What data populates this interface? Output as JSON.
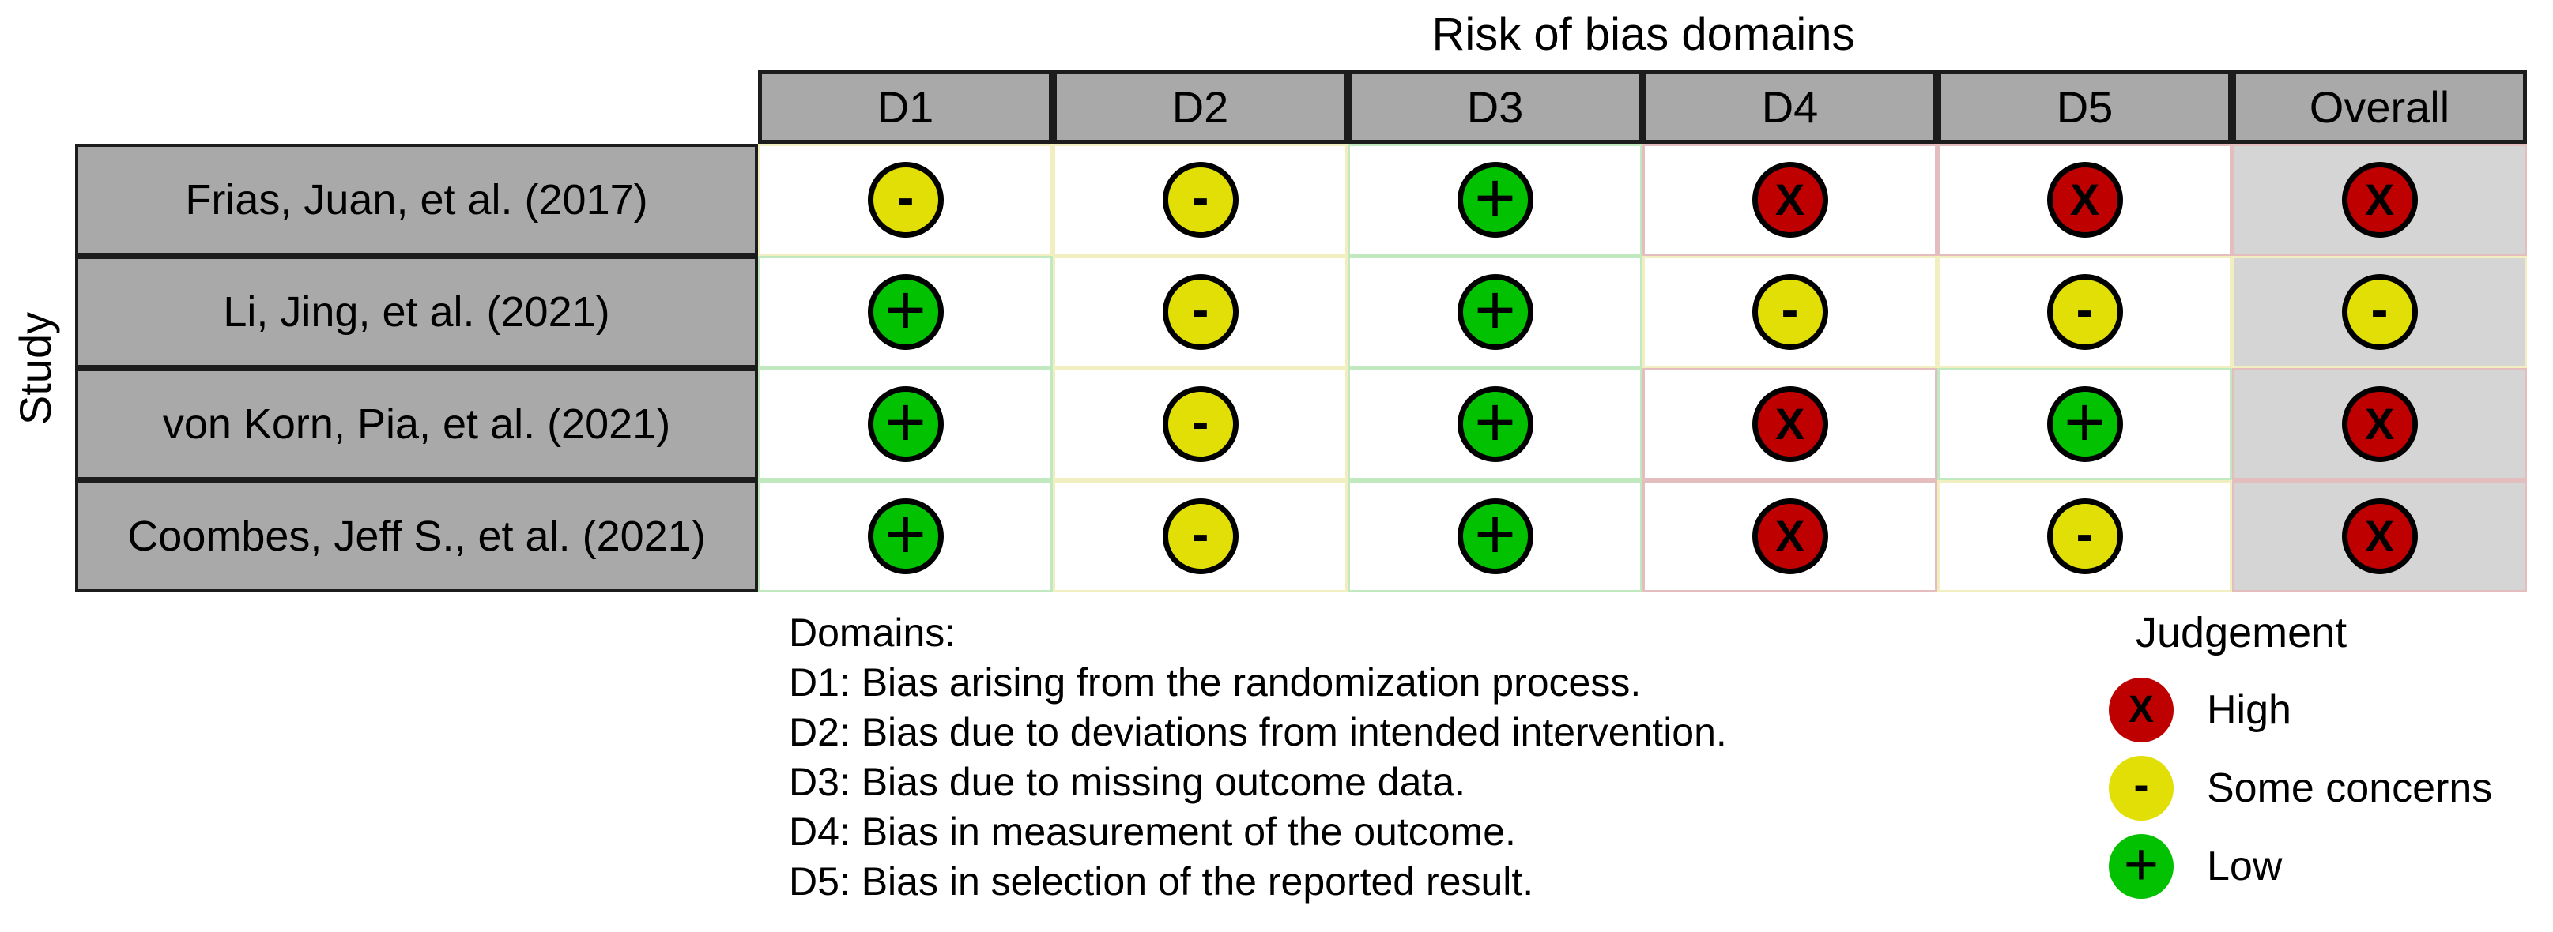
{
  "figure": {
    "title": "Risk of bias domains",
    "y_axis_label": "Study"
  },
  "table": {
    "columns": [
      "D1",
      "D2",
      "D3",
      "D4",
      "D5",
      "Overall"
    ],
    "rows": [
      {
        "study": "Frias, Juan, et al. (2017)",
        "judgements": [
          "some_concerns",
          "some_concerns",
          "low",
          "high",
          "high",
          "high"
        ]
      },
      {
        "study": "Li, Jing, et al. (2021)",
        "judgements": [
          "low",
          "some_concerns",
          "low",
          "some_concerns",
          "some_concerns",
          "some_concerns"
        ]
      },
      {
        "study": "von Korn, Pia, et al. (2021)",
        "judgements": [
          "low",
          "some_concerns",
          "low",
          "high",
          "low",
          "high"
        ]
      },
      {
        "study": "Coombes, Jeff S., et al. (2021)",
        "judgements": [
          "low",
          "some_concerns",
          "low",
          "high",
          "some_concerns",
          "high"
        ]
      }
    ]
  },
  "judgements": {
    "high": {
      "symbol": "X",
      "label": "High",
      "color": "#BF0000",
      "tint": "#E4BEBE"
    },
    "some_concerns": {
      "symbol": "-",
      "label": "Some concerns",
      "color": "#E2DF07",
      "tint": "#F1EFC0"
    },
    "low": {
      "symbol": "+",
      "label": "Low",
      "color": "#02C100",
      "tint": "#C1E9C0"
    }
  },
  "colors": {
    "header_bg": "#A9A9A9",
    "study_bg": "#A9A9A9",
    "overall_bg": "#D5D5D5",
    "cell_bg": "#FFFFFF",
    "border_dark": "#1C1C1C"
  },
  "domains_note": {
    "heading": "Domains:",
    "items": [
      "D1: Bias arising from the randomization process.",
      "D2: Bias due to deviations from intended intervention.",
      "D3: Bias due to missing outcome data.",
      "D4: Bias in measurement of the outcome.",
      "D5: Bias in selection of the reported result."
    ]
  },
  "legend": {
    "title": "Judgement",
    "items": [
      {
        "judgement": "high"
      },
      {
        "judgement": "some_concerns"
      },
      {
        "judgement": "low"
      }
    ]
  },
  "chart_data": {
    "type": "table",
    "title": "Risk of bias domains",
    "ylabel": "Study",
    "columns": [
      "D1",
      "D2",
      "D3",
      "D4",
      "D5",
      "Overall"
    ],
    "studies": [
      "Frias, Juan, et al. (2017)",
      "Li, Jing, et al. (2021)",
      "von Korn, Pia, et al. (2021)",
      "Coombes, Jeff S., et al. (2021)"
    ],
    "judgements_matrix": [
      [
        "Some concerns",
        "Some concerns",
        "Low",
        "High",
        "High",
        "High"
      ],
      [
        "Low",
        "Some concerns",
        "Low",
        "Some concerns",
        "Some concerns",
        "Some concerns"
      ],
      [
        "Low",
        "Some concerns",
        "Low",
        "High",
        "Low",
        "High"
      ],
      [
        "Low",
        "Some concerns",
        "Low",
        "High",
        "Some concerns",
        "High"
      ]
    ],
    "legend": {
      "X": "High",
      "-": "Some concerns",
      "+": "Low"
    },
    "legend_position": "bottom-right",
    "grid": true
  }
}
